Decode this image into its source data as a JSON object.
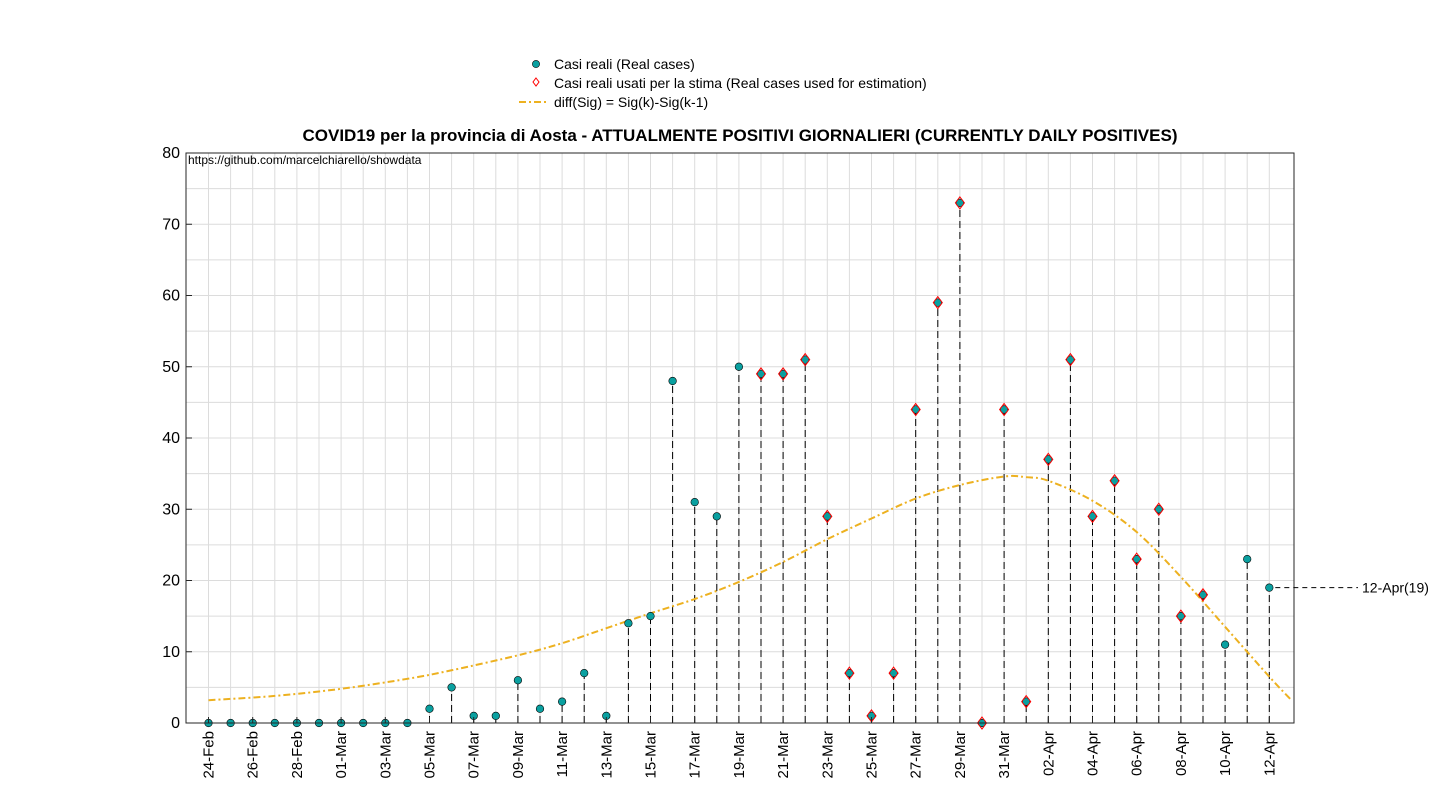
{
  "colors": {
    "real_marker": "#0aa0a0",
    "estimation_marker": "#ff0000",
    "fit_line": "#edb120",
    "stem": "#000000",
    "grid": "#dcdcdc"
  },
  "chart_data": {
    "type": "scatter",
    "title": "COVID19 per la provincia di Aosta - ATTUALMENTE POSITIVI GIORNALIERI (CURRENTLY DAILY POSITIVES)",
    "source_text": "https://github.com/marcelchiarello/showdata",
    "xlabel": "",
    "ylabel": "",
    "ylim": [
      0,
      80
    ],
    "yticks": [
      0,
      10,
      20,
      30,
      40,
      50,
      60,
      70,
      80
    ],
    "grid": true,
    "legend_placement": "top-center (outside plot)",
    "legend": [
      {
        "label": "Casi reali (Real cases)",
        "marker": "filled-circle"
      },
      {
        "label": "Casi reali usati per la stima (Real cases used for estimation)",
        "marker": "diamond"
      },
      {
        "label": "diff(Sig) = Sig(k)-Sig(k-1)",
        "marker": "dash-dot-line"
      }
    ],
    "dates": [
      "24-Feb",
      "25-Feb",
      "26-Feb",
      "27-Feb",
      "28-Feb",
      "29-Feb",
      "01-Mar",
      "02-Mar",
      "03-Mar",
      "04-Mar",
      "05-Mar",
      "06-Mar",
      "07-Mar",
      "08-Mar",
      "09-Mar",
      "10-Mar",
      "11-Mar",
      "12-Mar",
      "13-Mar",
      "14-Mar",
      "15-Mar",
      "16-Mar",
      "17-Mar",
      "18-Mar",
      "19-Mar",
      "20-Mar",
      "21-Mar",
      "22-Mar",
      "23-Mar",
      "24-Mar",
      "25-Mar",
      "26-Mar",
      "27-Mar",
      "28-Mar",
      "29-Mar",
      "30-Mar",
      "31-Mar",
      "01-Apr",
      "02-Apr",
      "03-Apr",
      "04-Apr",
      "05-Apr",
      "06-Apr",
      "07-Apr",
      "08-Apr",
      "09-Apr",
      "10-Apr",
      "11-Apr",
      "12-Apr"
    ],
    "xtick_labels": [
      "24-Feb",
      "26-Feb",
      "28-Feb",
      "01-Mar",
      "03-Mar",
      "05-Mar",
      "07-Mar",
      "09-Mar",
      "11-Mar",
      "13-Mar",
      "15-Mar",
      "17-Mar",
      "19-Mar",
      "21-Mar",
      "23-Mar",
      "25-Mar",
      "27-Mar",
      "29-Mar",
      "31-Mar",
      "02-Apr",
      "04-Apr",
      "06-Apr",
      "08-Apr",
      "10-Apr",
      "12-Apr"
    ],
    "series": [
      {
        "name": "Casi reali (Real cases)",
        "values": [
          0,
          0,
          0,
          0,
          0,
          0,
          0,
          0,
          0,
          0,
          2,
          5,
          1,
          1,
          6,
          2,
          3,
          7,
          1,
          14,
          15,
          48,
          31,
          29,
          50,
          49,
          49,
          51,
          29,
          7,
          1,
          7,
          44,
          59,
          73,
          0,
          44,
          3,
          37,
          51,
          29,
          34,
          23,
          30,
          15,
          18,
          11,
          23,
          19
        ]
      },
      {
        "name": "Casi reali usati per la stima (Real cases used for estimation)",
        "dates": [
          "20-Mar",
          "21-Mar",
          "22-Mar",
          "23-Mar",
          "24-Mar",
          "25-Mar",
          "26-Mar",
          "27-Mar",
          "28-Mar",
          "29-Mar",
          "30-Mar",
          "31-Mar",
          "01-Apr",
          "02-Apr",
          "03-Apr",
          "04-Apr",
          "05-Apr",
          "06-Apr",
          "07-Apr",
          "08-Apr",
          "09-Apr"
        ],
        "values": [
          49,
          49,
          51,
          29,
          7,
          1,
          7,
          44,
          59,
          73,
          0,
          44,
          3,
          37,
          51,
          29,
          34,
          23,
          30,
          15,
          18
        ]
      },
      {
        "name": "diff(Sig) = Sig(k)-Sig(k-1)",
        "dates": [
          "24-Feb",
          "27-Feb",
          "01-Mar",
          "04-Mar",
          "06-Mar",
          "09-Mar",
          "11-Mar",
          "13-Mar",
          "15-Mar",
          "17-Mar",
          "19-Mar",
          "21-Mar",
          "23-Mar",
          "25-Mar",
          "27-Mar",
          "29-Mar",
          "31-Mar",
          "01-Apr",
          "02-Apr",
          "04-Apr",
          "06-Apr",
          "08-Apr",
          "10-Apr",
          "12-Apr",
          "13-Apr"
        ],
        "values": [
          3.2,
          3.8,
          4.8,
          6.2,
          7.4,
          9.5,
          11.2,
          13.3,
          15.4,
          17.4,
          19.8,
          22.6,
          25.8,
          28.7,
          31.5,
          33.4,
          34.6,
          34.5,
          34.0,
          31.2,
          26.8,
          20.5,
          13.5,
          6.5,
          3.2
        ]
      }
    ],
    "annotation": {
      "label": "12-Apr(19)",
      "date": "12-Apr",
      "value": 19
    }
  }
}
